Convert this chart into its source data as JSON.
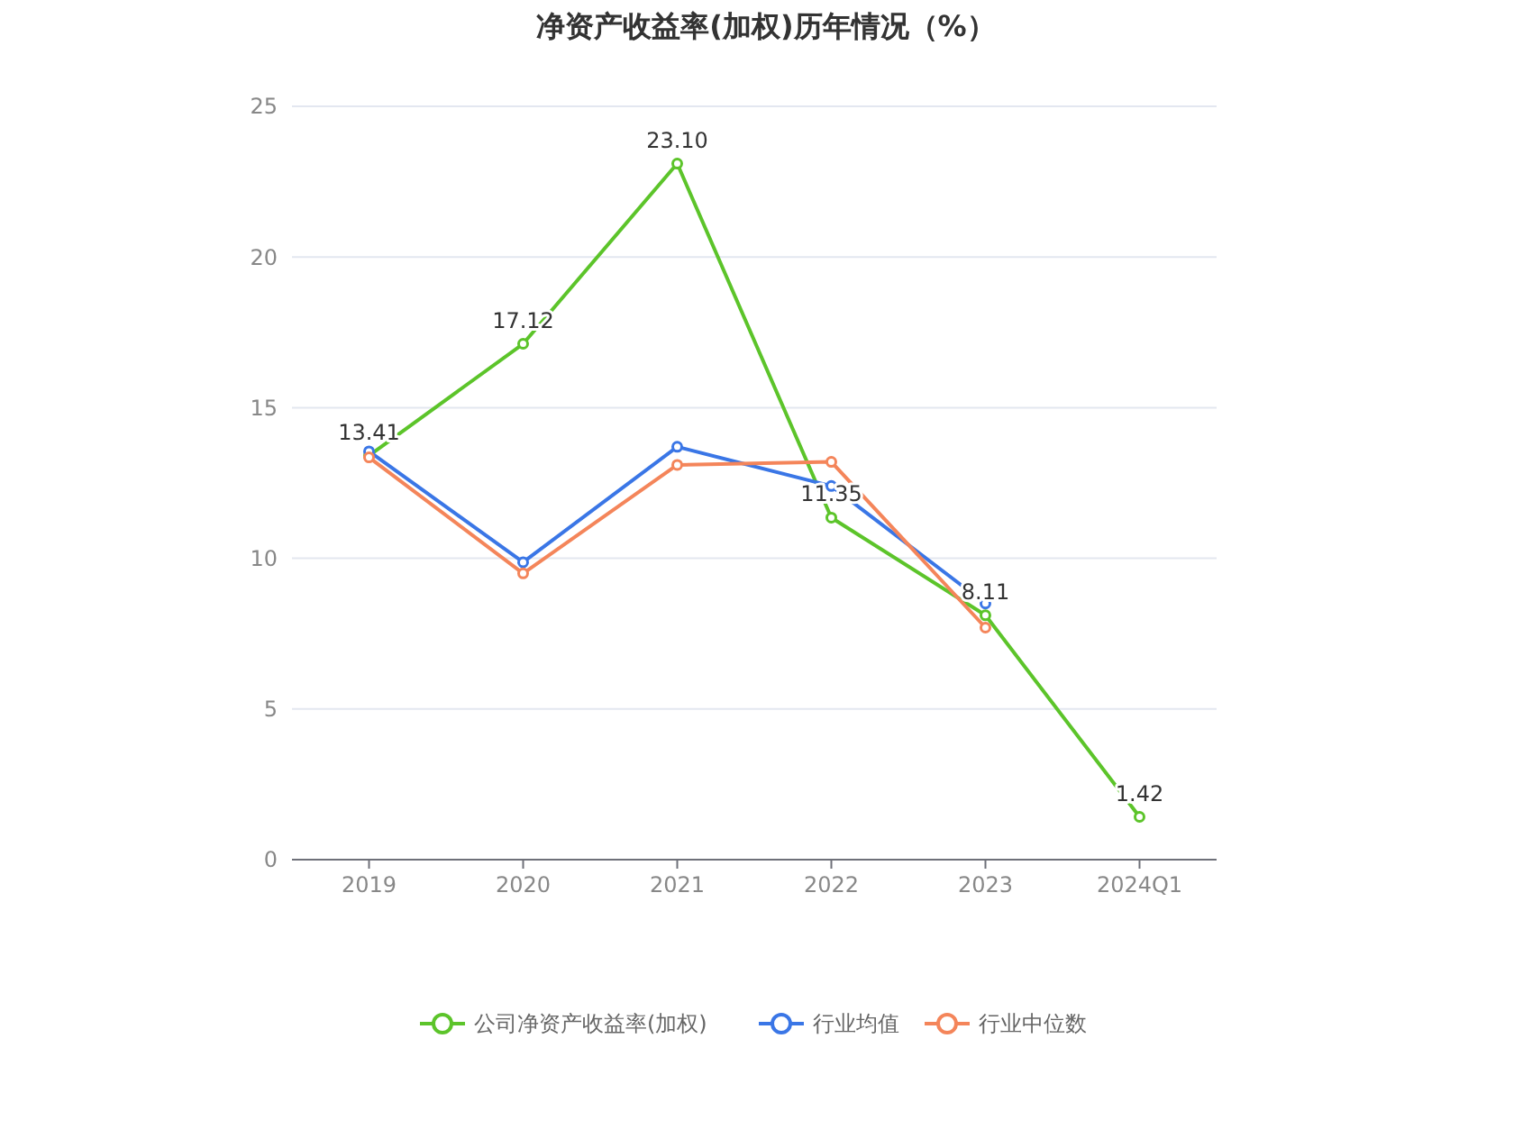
{
  "chart_data": {
    "type": "line",
    "title": "净资产收益率(加权)历年情况（%）",
    "categories": [
      "2019",
      "2020",
      "2021",
      "2022",
      "2023",
      "2024Q1"
    ],
    "series": [
      {
        "name": "公司净资产收益率(加权)",
        "color": "#5cc42a",
        "values": [
          13.41,
          17.12,
          23.1,
          11.35,
          8.11,
          1.42
        ],
        "value_labels": [
          "13.41",
          "17.12",
          "23.10",
          "11.35",
          "8.11",
          "1.42"
        ]
      },
      {
        "name": "行业均值",
        "color": "#3a76e6",
        "values": [
          13.55,
          9.87,
          13.7,
          12.4,
          8.5,
          null
        ]
      },
      {
        "name": "行业中位数",
        "color": "#f4855a",
        "values": [
          13.35,
          9.5,
          13.1,
          13.2,
          7.7,
          null
        ]
      }
    ],
    "ylim": [
      0,
      25
    ],
    "yticks": [
      0,
      5,
      10,
      15,
      20,
      25
    ],
    "grid": "y",
    "legend": "bottom",
    "marker": "circle",
    "line_style": "solid"
  }
}
